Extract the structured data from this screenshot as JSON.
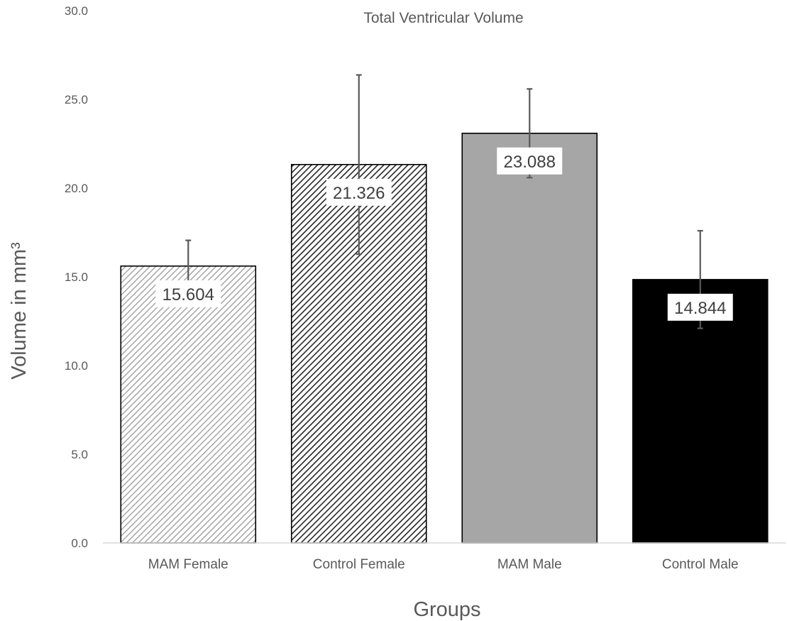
{
  "chart_data": {
    "type": "bar",
    "title": "Total Ventricular Volume",
    "xlabel": "Groups",
    "ylabel": "Volume in mm³",
    "categories": [
      "MAM Female",
      "Control Female",
      "MAM Male",
      "Control Male"
    ],
    "values": [
      15.604,
      21.326,
      23.088,
      14.844
    ],
    "value_labels": [
      "15.604",
      "21.326",
      "23.088",
      "14.844"
    ],
    "error_bars": [
      1.45,
      5.05,
      2.5,
      2.75
    ],
    "ylim": [
      0,
      30
    ],
    "yticks": [
      0,
      5,
      10,
      15,
      20,
      25,
      30
    ],
    "ytick_labels": [
      "0.0",
      "5.0",
      "10.0",
      "15.0",
      "20.0",
      "25.0",
      "30.0"
    ],
    "fills": [
      "light-diagonal-hatch",
      "dark-diagonal-hatch",
      "solid-gray",
      "solid-black"
    ],
    "colors": {
      "light_hatch": "#a6a6a6",
      "dark_hatch": "#262626",
      "gray": "#a6a6a6",
      "black": "#000000",
      "bar_outline": "#000000",
      "error_bar": "#595959",
      "axis": "#d9d9d9",
      "text": "#595959"
    },
    "grid": false,
    "legend": "none"
  }
}
